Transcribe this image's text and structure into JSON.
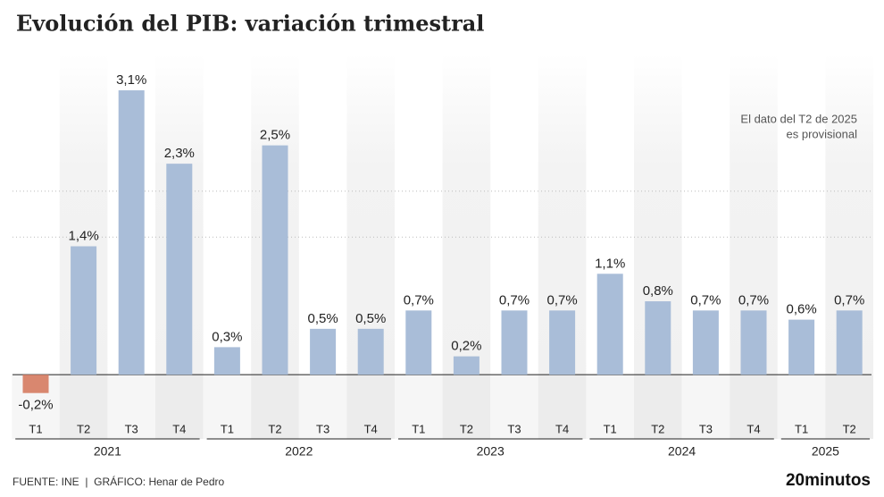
{
  "chart_data": {
    "type": "bar",
    "title": "Evolución del PIB: variación trimestral",
    "annotation": [
      "El dato del T2 de 2025",
      "es provisional"
    ],
    "source": "FUENTE: INE  |  GRÁFICO: Henar de Pedro",
    "brand": "20minutos",
    "groups": [
      {
        "name": "2021",
        "categories": [
          "T1",
          "T2",
          "T3",
          "T4"
        ],
        "values": [
          -0.2,
          1.4,
          3.1,
          2.3
        ],
        "value_labels": [
          "-0,2%",
          "1,4%",
          "3,1%",
          "2,3%"
        ]
      },
      {
        "name": "2022",
        "categories": [
          "T1",
          "T2",
          "T3",
          "T4"
        ],
        "values": [
          0.3,
          2.5,
          0.5,
          0.5
        ],
        "value_labels": [
          "0,3%",
          "2,5%",
          "0,5%",
          "0,5%"
        ]
      },
      {
        "name": "2023",
        "categories": [
          "T1",
          "T2",
          "T3",
          "T4"
        ],
        "values": [
          0.7,
          0.2,
          0.7,
          0.7
        ],
        "value_labels": [
          "0,7%",
          "0,2%",
          "0,7%",
          "0,7%"
        ]
      },
      {
        "name": "2024",
        "categories": [
          "T1",
          "T2",
          "T3",
          "T4"
        ],
        "values": [
          1.1,
          0.8,
          0.7,
          0.7
        ],
        "value_labels": [
          "1,1%",
          "0,8%",
          "0,7%",
          "0,7%"
        ]
      },
      {
        "name": "2025",
        "categories": [
          "T1",
          "T2"
        ],
        "values": [
          0.6,
          0.7
        ],
        "value_labels": [
          "0,6%",
          "0,7%"
        ]
      }
    ],
    "positive_color": "#a9bdd8",
    "negative_color": "#d9876f",
    "ylim": [
      -0.7,
      3.5
    ],
    "grid_lines": [
      1.5,
      2
    ]
  }
}
